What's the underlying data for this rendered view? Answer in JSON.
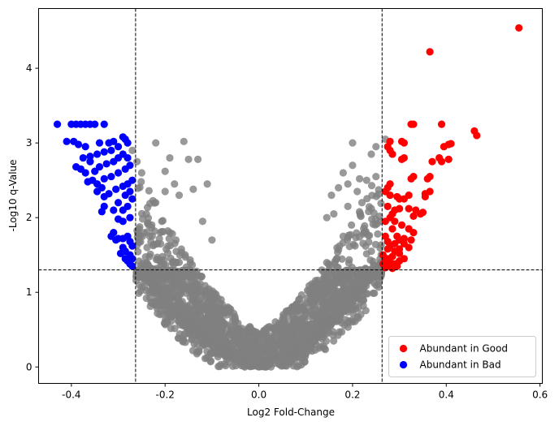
{
  "chart_data": {
    "type": "scatter",
    "xlabel": "Log2 Fold-Change",
    "ylabel": "-Log10 q-Value",
    "xlim": [
      -0.47,
      0.605
    ],
    "ylim": [
      -0.22,
      4.8
    ],
    "xticks": [
      "-0.4",
      "-0.2",
      "0.0",
      "0.2",
      "0.4",
      "0.6"
    ],
    "xtick_values": [
      -0.4,
      -0.2,
      0.0,
      0.2,
      0.4,
      0.6
    ],
    "yticks": [
      "0",
      "1",
      "2",
      "3",
      "4"
    ],
    "ytick_values": [
      0,
      1,
      2,
      3,
      4
    ],
    "thresholds": {
      "fold_change": 0.263,
      "q_value": 1.3
    },
    "grid": false,
    "legend_position": "bottom-right",
    "colors": {
      "good": "#ff0000",
      "bad": "#0000ff",
      "neutral": "#808080",
      "threshold": "#000000"
    },
    "series": [
      {
        "name": "Abundant in Good",
        "color": "#ff0000",
        "points": [
          [
            0.555,
            4.54
          ],
          [
            0.365,
            4.22
          ],
          [
            0.46,
            3.16
          ],
          [
            0.465,
            3.1
          ],
          [
            0.39,
            3.25
          ],
          [
            0.33,
            3.25
          ],
          [
            0.325,
            3.25
          ],
          [
            0.28,
            3.02
          ],
          [
            0.305,
            3.02
          ],
          [
            0.31,
            3.0
          ],
          [
            0.405,
            2.98
          ],
          [
            0.41,
            2.99
          ],
          [
            0.395,
            2.95
          ],
          [
            0.385,
            2.8
          ],
          [
            0.39,
            2.75
          ],
          [
            0.405,
            2.78
          ],
          [
            0.37,
            2.75
          ],
          [
            0.31,
            2.8
          ],
          [
            0.305,
            2.78
          ],
          [
            0.28,
            2.9
          ],
          [
            0.285,
            2.85
          ],
          [
            0.275,
            2.95
          ],
          [
            0.33,
            2.55
          ],
          [
            0.325,
            2.52
          ],
          [
            0.365,
            2.55
          ],
          [
            0.36,
            2.52
          ],
          [
            0.365,
            2.35
          ],
          [
            0.355,
            2.32
          ],
          [
            0.355,
            2.28
          ],
          [
            0.32,
            2.3
          ],
          [
            0.31,
            2.25
          ],
          [
            0.295,
            2.28
          ],
          [
            0.3,
            2.25
          ],
          [
            0.28,
            2.45
          ],
          [
            0.275,
            2.4
          ],
          [
            0.27,
            2.35
          ],
          [
            0.28,
            2.3
          ],
          [
            0.345,
            2.05
          ],
          [
            0.35,
            2.07
          ],
          [
            0.33,
            2.02
          ],
          [
            0.335,
            2.1
          ],
          [
            0.32,
            2.12
          ],
          [
            0.3,
            2.12
          ],
          [
            0.29,
            2.1
          ],
          [
            0.285,
            2.05
          ],
          [
            0.275,
            2.15
          ],
          [
            0.28,
            2.0
          ],
          [
            0.27,
            1.95
          ],
          [
            0.29,
            1.95
          ],
          [
            0.305,
            1.9
          ],
          [
            0.32,
            1.85
          ],
          [
            0.33,
            1.8
          ],
          [
            0.325,
            1.7
          ],
          [
            0.31,
            1.72
          ],
          [
            0.3,
            1.7
          ],
          [
            0.29,
            1.65
          ],
          [
            0.28,
            1.62
          ],
          [
            0.275,
            1.58
          ],
          [
            0.29,
            1.55
          ],
          [
            0.3,
            1.52
          ],
          [
            0.285,
            1.48
          ],
          [
            0.275,
            1.45
          ],
          [
            0.27,
            1.42
          ],
          [
            0.28,
            1.4
          ],
          [
            0.29,
            1.38
          ],
          [
            0.3,
            1.42
          ],
          [
            0.275,
            1.35
          ],
          [
            0.27,
            1.33
          ],
          [
            0.285,
            1.32
          ],
          [
            0.295,
            1.35
          ],
          [
            0.31,
            1.45
          ],
          [
            0.32,
            1.6
          ],
          [
            0.295,
            1.75
          ],
          [
            0.285,
            1.85
          ],
          [
            0.27,
            1.75
          ],
          [
            0.275,
            1.68
          ],
          [
            0.3,
            1.58
          ],
          [
            0.31,
            1.65
          ],
          [
            0.265,
            1.5
          ],
          [
            0.265,
            1.38
          ]
        ]
      },
      {
        "name": "Abundant in Bad",
        "color": "#0000ff",
        "points": [
          [
            -0.43,
            3.25
          ],
          [
            -0.4,
            3.25
          ],
          [
            -0.39,
            3.25
          ],
          [
            -0.38,
            3.25
          ],
          [
            -0.37,
            3.25
          ],
          [
            -0.36,
            3.25
          ],
          [
            -0.35,
            3.25
          ],
          [
            -0.33,
            3.25
          ],
          [
            -0.41,
            3.02
          ],
          [
            -0.395,
            3.02
          ],
          [
            -0.385,
            2.98
          ],
          [
            -0.37,
            2.95
          ],
          [
            -0.34,
            3.0
          ],
          [
            -0.32,
            3.0
          ],
          [
            -0.31,
            3.02
          ],
          [
            -0.28,
            3.0
          ],
          [
            -0.285,
            3.05
          ],
          [
            -0.29,
            3.08
          ],
          [
            -0.3,
            2.95
          ],
          [
            -0.315,
            2.9
          ],
          [
            -0.33,
            2.88
          ],
          [
            -0.345,
            2.85
          ],
          [
            -0.36,
            2.82
          ],
          [
            -0.375,
            2.8
          ],
          [
            -0.36,
            2.75
          ],
          [
            -0.39,
            2.68
          ],
          [
            -0.38,
            2.65
          ],
          [
            -0.37,
            2.6
          ],
          [
            -0.35,
            2.62
          ],
          [
            -0.34,
            2.68
          ],
          [
            -0.325,
            2.72
          ],
          [
            -0.31,
            2.75
          ],
          [
            -0.3,
            2.8
          ],
          [
            -0.29,
            2.85
          ],
          [
            -0.28,
            2.8
          ],
          [
            -0.275,
            2.7
          ],
          [
            -0.285,
            2.65
          ],
          [
            -0.3,
            2.6
          ],
          [
            -0.315,
            2.55
          ],
          [
            -0.33,
            2.52
          ],
          [
            -0.355,
            2.5
          ],
          [
            -0.365,
            2.48
          ],
          [
            -0.345,
            2.45
          ],
          [
            -0.335,
            2.4
          ],
          [
            -0.345,
            2.35
          ],
          [
            -0.33,
            2.28
          ],
          [
            -0.32,
            2.32
          ],
          [
            -0.305,
            2.38
          ],
          [
            -0.29,
            2.42
          ],
          [
            -0.28,
            2.45
          ],
          [
            -0.27,
            2.5
          ],
          [
            -0.275,
            2.35
          ],
          [
            -0.285,
            2.3
          ],
          [
            -0.3,
            2.2
          ],
          [
            -0.31,
            2.1
          ],
          [
            -0.33,
            2.15
          ],
          [
            -0.335,
            2.08
          ],
          [
            -0.29,
            2.1
          ],
          [
            -0.28,
            2.15
          ],
          [
            -0.27,
            2.25
          ],
          [
            -0.275,
            2.0
          ],
          [
            -0.29,
            1.95
          ],
          [
            -0.3,
            1.98
          ],
          [
            -0.31,
            1.8
          ],
          [
            -0.315,
            1.75
          ],
          [
            -0.305,
            1.7
          ],
          [
            -0.3,
            1.72
          ],
          [
            -0.29,
            1.72
          ],
          [
            -0.28,
            1.75
          ],
          [
            -0.275,
            1.68
          ],
          [
            -0.29,
            1.6
          ],
          [
            -0.285,
            1.55
          ],
          [
            -0.275,
            1.5
          ],
          [
            -0.27,
            1.45
          ],
          [
            -0.28,
            1.42
          ],
          [
            -0.275,
            1.38
          ],
          [
            -0.27,
            1.35
          ],
          [
            -0.285,
            1.45
          ],
          [
            -0.27,
            1.62
          ],
          [
            -0.295,
            1.52
          ]
        ]
      }
    ],
    "background_series": {
      "label": "",
      "color": "#808080",
      "description_shape": "volcano",
      "generated_count": 2500,
      "upper_points": [
        [
          -0.27,
          2.9
        ],
        [
          -0.26,
          2.75
        ],
        [
          -0.25,
          2.6
        ],
        [
          -0.22,
          3.0
        ],
        [
          -0.2,
          2.62
        ],
        [
          -0.18,
          2.45
        ],
        [
          -0.15,
          2.78
        ],
        [
          -0.14,
          2.38
        ],
        [
          -0.13,
          2.78
        ],
        [
          -0.12,
          1.95
        ],
        [
          -0.2,
          2.35
        ],
        [
          -0.24,
          2.05
        ],
        [
          -0.235,
          1.9
        ],
        [
          -0.22,
          2.2
        ],
        [
          -0.19,
          2.8
        ],
        [
          -0.16,
          3.02
        ],
        [
          -0.17,
          2.3
        ],
        [
          -0.21,
          1.8
        ],
        [
          -0.11,
          2.45
        ],
        [
          -0.1,
          1.7
        ],
        [
          0.27,
          3.05
        ],
        [
          0.25,
          2.95
        ],
        [
          0.23,
          2.5
        ],
        [
          0.21,
          2.35
        ],
        [
          0.19,
          2.15
        ],
        [
          0.17,
          2.4
        ],
        [
          0.2,
          2.7
        ],
        [
          0.18,
          2.6
        ],
        [
          0.16,
          2.05
        ],
        [
          0.24,
          2.85
        ],
        [
          0.25,
          2.55
        ],
        [
          0.215,
          2.52
        ],
        [
          0.2,
          3.0
        ],
        [
          0.22,
          2.2
        ],
        [
          0.19,
          2.45
        ],
        [
          0.155,
          2.3
        ],
        [
          0.145,
          2.0
        ],
        [
          0.26,
          1.95
        ],
        [
          0.24,
          2.12
        ],
        [
          0.18,
          1.75
        ]
      ]
    }
  }
}
